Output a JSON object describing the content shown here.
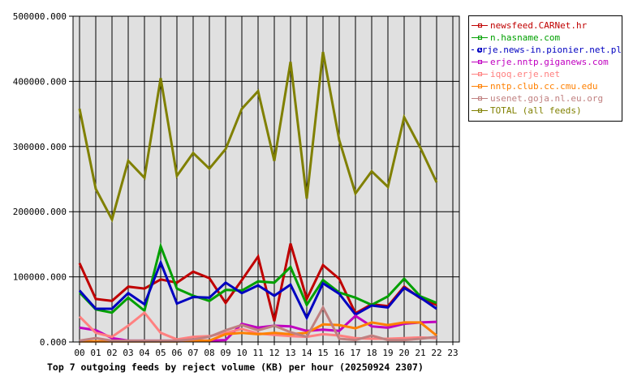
{
  "chart_data": {
    "type": "line",
    "title": "Top 7 outgoing feeds by reject volume (KB) per hour (20250924 2307)",
    "xlabel": "",
    "ylabel": "",
    "ylim": [
      0,
      500000
    ],
    "yticks": [
      "0.000",
      "100000.000",
      "200000.000",
      "300000.000",
      "400000.000",
      "500000.000"
    ],
    "grid": true,
    "legend_position": "right",
    "x": [
      "00",
      "01",
      "02",
      "03",
      "04",
      "05",
      "06",
      "07",
      "08",
      "09",
      "10",
      "11",
      "12",
      "13",
      "14",
      "15",
      "16",
      "17",
      "18",
      "19",
      "20",
      "21",
      "22",
      "23"
    ],
    "series": [
      {
        "name": "newsfeed.CARNet.hr",
        "color": "#c00000",
        "values": [
          121000,
          66000,
          63000,
          85000,
          82000,
          96000,
          91000,
          108000,
          98000,
          60000,
          95000,
          131000,
          32000,
          151000,
          66000,
          118000,
          97000,
          44000,
          58000,
          55000,
          85000,
          67000,
          57000
        ]
      },
      {
        "name": "n.hasname.com",
        "color": "#00a000",
        "values": [
          76000,
          50000,
          45000,
          68000,
          48000,
          147000,
          82000,
          71000,
          63000,
          80000,
          79000,
          93000,
          91000,
          115000,
          57000,
          95000,
          76000,
          68000,
          57000,
          70000,
          97000,
          70000,
          60000
        ]
      },
      {
        "name": "erje.news-in.pionier.net.pl",
        "color": "#0000c0",
        "values": [
          79000,
          51000,
          51000,
          75000,
          58000,
          122000,
          59000,
          69000,
          68000,
          91000,
          75000,
          87000,
          71000,
          88000,
          37000,
          90000,
          74000,
          42000,
          56000,
          53000,
          83000,
          68000,
          51000
        ]
      },
      {
        "name": "erje.nntp.giganews.com",
        "color": "#c000c0",
        "values": [
          22000,
          18000,
          6000,
          2000,
          2000,
          2000,
          2000,
          2000,
          2000,
          3000,
          28000,
          22000,
          25000,
          24000,
          17000,
          19000,
          17000,
          40000,
          24000,
          22000,
          28000,
          30000,
          31000
        ]
      },
      {
        "name": "iqoq.erje.net",
        "color": "#ff8080",
        "values": [
          39000,
          14000,
          8000,
          25000,
          45000,
          14000,
          4000,
          8000,
          9000,
          14000,
          20000,
          13000,
          11000,
          9000,
          8000,
          12000,
          10000,
          6000,
          5000,
          5000,
          6000,
          7000,
          6000
        ]
      },
      {
        "name": "nntp.club.cc.cmu.edu",
        "color": "#ff8000",
        "values": [
          1000,
          1000,
          1000,
          1000,
          1000,
          1000,
          1000,
          2000,
          2000,
          12000,
          14000,
          12000,
          14000,
          12000,
          14000,
          27000,
          26000,
          21000,
          30000,
          26000,
          30000,
          30000,
          10000
        ]
      },
      {
        "name": "usenet.goja.nl.eu.org",
        "color": "#c08080",
        "values": [
          2000,
          6000,
          2000,
          2000,
          2000,
          2000,
          2000,
          4000,
          8000,
          18000,
          26000,
          18000,
          25000,
          15000,
          8000,
          53000,
          5000,
          3000,
          10000,
          3000,
          3000,
          5000,
          8000
        ]
      },
      {
        "name": "TOTAL (all feeds)",
        "color": "#808000",
        "values": [
          358000,
          235000,
          188000,
          278000,
          252000,
          405000,
          255000,
          290000,
          266000,
          296000,
          358000,
          385000,
          278000,
          430000,
          220000,
          445000,
          310000,
          228000,
          262000,
          238000,
          345000,
          298000,
          245000
        ]
      }
    ]
  }
}
